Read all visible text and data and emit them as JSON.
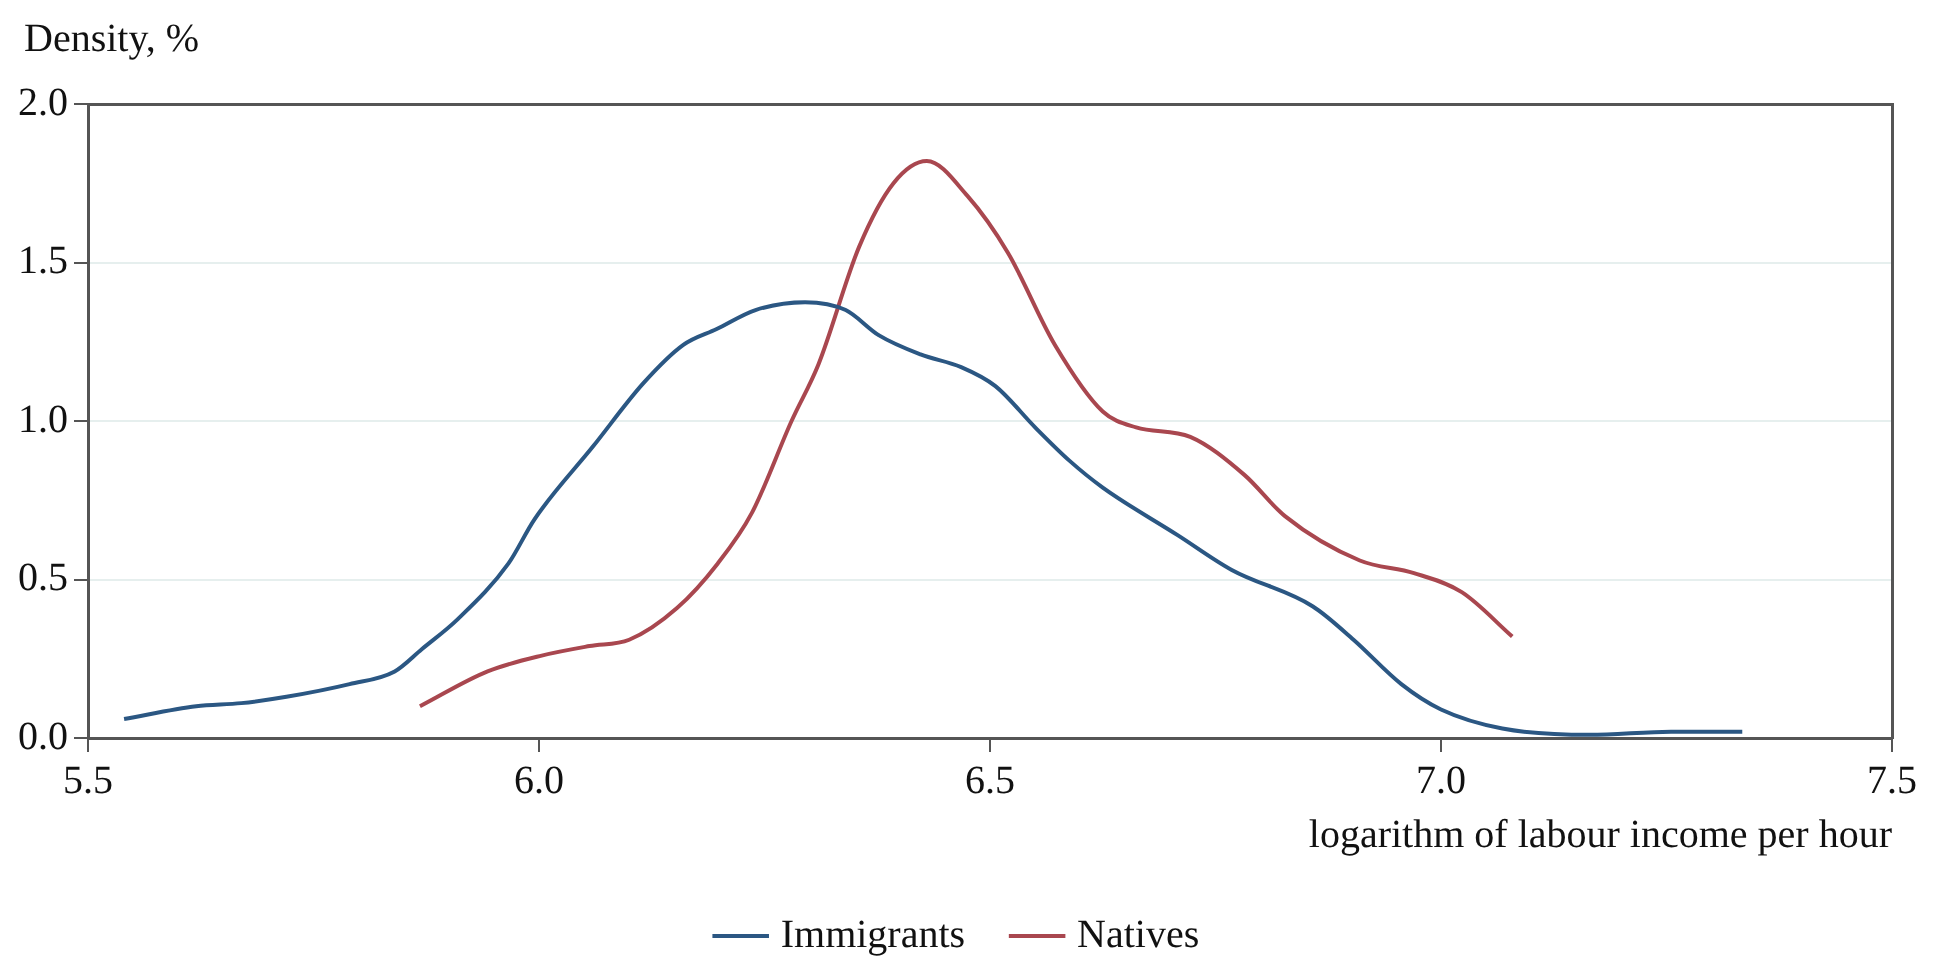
{
  "chart_data": {
    "type": "line",
    "xlabel": "logarithm of labour income per hour",
    "ylabel": "Density, %",
    "xlim": [
      5.5,
      7.5
    ],
    "xticks": [
      {
        "value": 5.5,
        "label": "5.5"
      },
      {
        "value": 6,
        "label": "6.0"
      },
      {
        "value": 6.5,
        "label": "6.5"
      },
      {
        "value": 7,
        "label": "7.0"
      },
      {
        "value": 7.5,
        "label": "7.5"
      }
    ],
    "ylim": [
      0,
      2
    ],
    "yticks": [
      {
        "value": 0,
        "label": "0.0"
      },
      {
        "value": 0.5,
        "label": "0.5"
      },
      {
        "value": 1,
        "label": "1.0"
      },
      {
        "value": 1.5,
        "label": "1.5"
      },
      {
        "value": 2,
        "label": "2.0"
      }
    ],
    "grid": "y",
    "legend": "bottom",
    "marker": "none",
    "line_style": "solid",
    "series": [
      {
        "name": "Immigrants",
        "color": "#2b5783",
        "x": [
          5.54,
          5.62,
          5.67,
          5.72,
          5.79,
          5.84,
          5.87,
          5.91,
          5.966,
          5.995,
          6.06,
          6.116,
          6.16,
          6.197,
          6.24,
          6.295,
          6.34,
          6.377,
          6.423,
          6.468,
          6.506,
          6.55,
          6.588,
          6.625,
          6.708,
          6.768,
          6.858,
          6.903,
          6.956,
          7.0,
          7.068,
          7.165,
          7.255,
          7.334
        ],
        "values": [
          0.06,
          0.1,
          0.11,
          0.13,
          0.17,
          0.21,
          0.28,
          0.375,
          0.55,
          0.69,
          0.92,
          1.12,
          1.24,
          1.29,
          1.35,
          1.375,
          1.35,
          1.27,
          1.21,
          1.17,
          1.11,
          0.98,
          0.875,
          0.79,
          0.64,
          0.53,
          0.415,
          0.31,
          0.17,
          0.09,
          0.03,
          0.01,
          0.02,
          0.02
        ]
      },
      {
        "name": "Natives",
        "color": "#a9474f",
        "x": [
          5.868,
          5.943,
          6.003,
          6.056,
          6.1,
          6.153,
          6.198,
          6.236,
          6.28,
          6.31,
          6.355,
          6.393,
          6.43,
          6.475,
          6.52,
          6.572,
          6.625,
          6.662,
          6.722,
          6.782,
          6.827,
          6.91,
          6.97,
          7.023,
          7.079
        ],
        "values": [
          0.1,
          0.21,
          0.26,
          0.29,
          0.31,
          0.41,
          0.55,
          0.71,
          1.0,
          1.18,
          1.55,
          1.75,
          1.82,
          1.71,
          1.53,
          1.24,
          1.03,
          0.98,
          0.95,
          0.83,
          0.7,
          0.56,
          0.52,
          0.46,
          0.32
        ]
      }
    ]
  }
}
